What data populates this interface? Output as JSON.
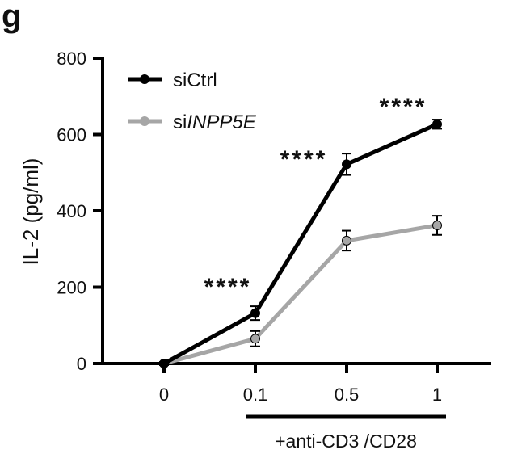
{
  "panel_label": "g",
  "chart_data": {
    "type": "line",
    "ylabel": "IL-2 (pg/ml)",
    "xlabel": "",
    "categories": [
      "0",
      "0.1",
      "0.5",
      "1"
    ],
    "ylim": [
      0,
      800
    ],
    "yticks": [
      0,
      200,
      400,
      600,
      800
    ],
    "grid": false,
    "legend_position": "top-left",
    "series": [
      {
        "name": "siCtrl",
        "name_prefix": "si",
        "name_gene": "Ctrl",
        "color": "#000000",
        "values": [
          0,
          132,
          522,
          627
        ],
        "errors": [
          4,
          18,
          28,
          12
        ]
      },
      {
        "name": "siINPP5E",
        "name_prefix": "si",
        "name_gene": "INPP5E",
        "color": "#a6a6a6",
        "values": [
          0,
          65,
          322,
          362
        ],
        "errors": [
          4,
          20,
          26,
          25
        ]
      }
    ],
    "significance": [
      {
        "category": "0.1",
        "label": "****"
      },
      {
        "category": "0.5",
        "label": "****"
      },
      {
        "category": "1",
        "label": "****"
      }
    ],
    "treatment_label": "+anti-CD3 /CD28"
  }
}
